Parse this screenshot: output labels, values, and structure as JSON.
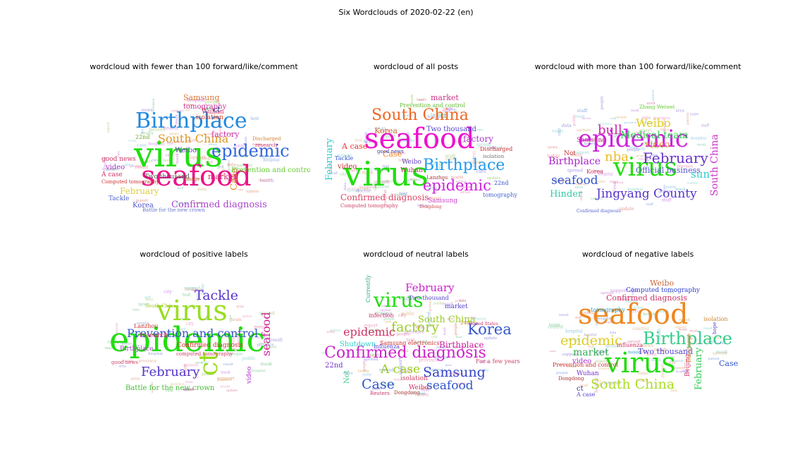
{
  "suptitle": "Six Wordclouds of 2020-02-22 (en)",
  "chart_data": [
    {
      "type": "wordcloud",
      "title": "wordcloud with fewer than 100 forward/like/comment",
      "words": [
        {
          "text": "virus",
          "color": "#22dd11"
        },
        {
          "text": "seafood",
          "color": "#ee1188"
        },
        {
          "text": "Birthplace",
          "color": "#2288dd"
        },
        {
          "text": "epidemic",
          "color": "#3366dd"
        },
        {
          "text": "South China",
          "color": "#dd9922"
        },
        {
          "text": "Confirmed diagnosis",
          "color": "#aa44cc"
        },
        {
          "text": "February",
          "color": "#ddcc44"
        },
        {
          "text": "Case",
          "color": "#dd8833"
        },
        {
          "text": "Samsung",
          "color": "#dd7733"
        },
        {
          "text": "market",
          "color": "#cc3377"
        },
        {
          "text": "factory",
          "color": "#cc33aa"
        },
        {
          "text": "Prevention and control",
          "color": "#66cc33"
        },
        {
          "text": "tomography",
          "color": "#cc3399"
        },
        {
          "text": "Korea",
          "color": "#5555cc"
        },
        {
          "text": "video",
          "color": "#aa33cc"
        },
        {
          "text": "Weibo",
          "color": "#7744cc"
        },
        {
          "text": "Wuhan",
          "color": "#cc3366"
        },
        {
          "text": "isolation",
          "color": "#cc4433"
        },
        {
          "text": "A case",
          "color": "#cc3366"
        },
        {
          "text": "good news",
          "color": "#cc3366"
        },
        {
          "text": "Two thousand",
          "color": "#555555"
        },
        {
          "text": "Tackle",
          "color": "#5566cc"
        },
        {
          "text": "Computed tomography",
          "color": "#cc3333"
        },
        {
          "text": "Discharged",
          "color": "#cc8833"
        },
        {
          "text": "research",
          "color": "#cc3366"
        },
        {
          "text": "image",
          "color": "#aa5522"
        },
        {
          "text": "22nd",
          "color": "#77aa33"
        },
        {
          "text": "ct",
          "color": "#333399"
        },
        {
          "text": "Battle for the new crown",
          "color": "#6677cc"
        }
      ]
    },
    {
      "type": "wordcloud",
      "title": "wordcloud of all posts",
      "words": [
        {
          "text": "virus",
          "color": "#22dd11"
        },
        {
          "text": "seafood",
          "color": "#ee11cc"
        },
        {
          "text": "South China",
          "color": "#ee6622"
        },
        {
          "text": "Birthplace",
          "color": "#2299ee"
        },
        {
          "text": "epidemic",
          "color": "#cc22dd"
        },
        {
          "text": "Confirmed diagnosis",
          "color": "#dd4466"
        },
        {
          "text": "February",
          "color": "#33cccc"
        },
        {
          "text": "factory",
          "color": "#aa33cc"
        },
        {
          "text": "A case",
          "color": "#ee3333"
        },
        {
          "text": "Korea",
          "color": "#cc6633"
        },
        {
          "text": "Case",
          "color": "#ee8833"
        },
        {
          "text": "market",
          "color": "#cc3388"
        },
        {
          "text": "video",
          "color": "#cc3333"
        },
        {
          "text": "Weibo",
          "color": "#6644cc"
        },
        {
          "text": "Wuhan",
          "color": "#cc3366"
        },
        {
          "text": "Samsung",
          "color": "#cc44cc"
        },
        {
          "text": "Two thousand",
          "color": "#5544cc"
        },
        {
          "text": "Prevention and control",
          "color": "#66bb33"
        },
        {
          "text": "Tackle",
          "color": "#3355cc"
        },
        {
          "text": "Discharged",
          "color": "#cc3333"
        },
        {
          "text": "tomography",
          "color": "#4466cc"
        },
        {
          "text": "22nd",
          "color": "#3355cc"
        },
        {
          "text": "Computed tomography",
          "color": "#cc4466"
        },
        {
          "text": "ct",
          "color": "#33aa88"
        },
        {
          "text": "good news",
          "color": "#333399"
        },
        {
          "text": "isolation",
          "color": "#777777"
        },
        {
          "text": "Lanzhou",
          "color": "#aa3333"
        },
        {
          "text": "Dongdong",
          "color": "#cc4444"
        }
      ]
    },
    {
      "type": "wordcloud",
      "title": "wordcloud with more than 100 forward/like/comment",
      "words": [
        {
          "text": "epidemic",
          "color": "#cc22dd"
        },
        {
          "text": "virus",
          "color": "#22dd11"
        },
        {
          "text": "Jingyang County",
          "color": "#5533cc"
        },
        {
          "text": "February",
          "color": "#6633cc"
        },
        {
          "text": "Weibo",
          "color": "#ddcc22"
        },
        {
          "text": "Medical team",
          "color": "#33cc55"
        },
        {
          "text": "seafood",
          "color": "#3355cc"
        },
        {
          "text": "Birthplace",
          "color": "#aa22cc"
        },
        {
          "text": "nba",
          "color": "#eebb22"
        },
        {
          "text": "bull",
          "color": "#cc22aa"
        },
        {
          "text": "video",
          "color": "#ee8833"
        },
        {
          "text": "Hinder",
          "color": "#33ccaa"
        },
        {
          "text": "sun",
          "color": "#33cccc"
        },
        {
          "text": "South China",
          "color": "#cc33cc"
        },
        {
          "text": "Official business",
          "color": "#5555cc"
        },
        {
          "text": "Samsung",
          "color": "#cc3399"
        },
        {
          "text": "Not",
          "color": "#cc3333"
        },
        {
          "text": "Korea",
          "color": "#cc3366"
        },
        {
          "text": "Zhang Weiwei",
          "color": "#66cc33"
        },
        {
          "text": "Confirmed diagnosis",
          "color": "#5566cc"
        }
      ]
    },
    {
      "type": "wordcloud",
      "title": "wordcloud of positive labels",
      "words": [
        {
          "text": "epidemic",
          "color": "#22dd11"
        },
        {
          "text": "virus",
          "color": "#99dd22"
        },
        {
          "text": "ct",
          "color": "#99dd22"
        },
        {
          "text": "Prevention and control",
          "color": "#3355cc"
        },
        {
          "text": "February",
          "color": "#5533cc"
        },
        {
          "text": "Tackle",
          "color": "#5533cc"
        },
        {
          "text": "seafood",
          "color": "#cc2299"
        },
        {
          "text": "Battle for the new crown",
          "color": "#44bb33"
        },
        {
          "text": "Confirmed diagnosis",
          "color": "#cc3333"
        },
        {
          "text": "research",
          "color": "#cc3366"
        },
        {
          "text": "Lanzhou",
          "color": "#cc3333"
        },
        {
          "text": "Birthplace",
          "color": "#aa44cc"
        },
        {
          "text": "video",
          "color": "#aa33cc"
        },
        {
          "text": "South China",
          "color": "#aacc33"
        },
        {
          "text": "good news",
          "color": "#cc4466"
        },
        {
          "text": "computed tomography",
          "color": "#cc4466"
        }
      ]
    },
    {
      "type": "wordcloud",
      "title": "wordcloud of neutral labels",
      "words": [
        {
          "text": "Confirmed diagnosis",
          "color": "#cc22cc"
        },
        {
          "text": "virus",
          "color": "#22dd11"
        },
        {
          "text": "factory",
          "color": "#99cc22"
        },
        {
          "text": "Korea",
          "color": "#3355cc"
        },
        {
          "text": "Samsung",
          "color": "#3344cc"
        },
        {
          "text": "epidemic",
          "color": "#cc3366"
        },
        {
          "text": "February",
          "color": "#cc22cc"
        },
        {
          "text": "South China",
          "color": "#99cc22"
        },
        {
          "text": "A case",
          "color": "#99cc22"
        },
        {
          "text": "Case",
          "color": "#3355cc"
        },
        {
          "text": "seafood",
          "color": "#3355cc"
        },
        {
          "text": "Birthplace",
          "color": "#cc2299"
        },
        {
          "text": "Shutdown",
          "color": "#33cccc"
        },
        {
          "text": "22nd",
          "color": "#7733cc"
        },
        {
          "text": "Samsung electronics",
          "color": "#cc3333"
        },
        {
          "text": "market",
          "color": "#5544cc"
        },
        {
          "text": "Two thousand",
          "color": "#5544cc"
        },
        {
          "text": "isolation",
          "color": "#cc4466"
        },
        {
          "text": "Weibo",
          "color": "#cc3366"
        },
        {
          "text": "influenza",
          "color": "#5544cc"
        },
        {
          "text": "infection",
          "color": "#cc3366"
        },
        {
          "text": "For a few years",
          "color": "#cc4466"
        },
        {
          "text": "Not",
          "color": "#33cc88"
        },
        {
          "text": "Currently",
          "color": "#33aa88"
        },
        {
          "text": "Reuters",
          "color": "#cc3366"
        },
        {
          "text": "Dongdong",
          "color": "#aa3333"
        },
        {
          "text": "24th",
          "color": "#cc8833"
        },
        {
          "text": "United States",
          "color": "#cc3366"
        }
      ]
    },
    {
      "type": "wordcloud",
      "title": "wordcloud of negative labels",
      "words": [
        {
          "text": "seafood",
          "color": "#ee8822"
        },
        {
          "text": "virus",
          "color": "#22dd11"
        },
        {
          "text": "Birthplace",
          "color": "#33cc88"
        },
        {
          "text": "epidemic",
          "color": "#ddcc22"
        },
        {
          "text": "South China",
          "color": "#aadd22"
        },
        {
          "text": "market",
          "color": "#33aa55"
        },
        {
          "text": "February",
          "color": "#33cc55"
        },
        {
          "text": "Confirmed diagnosis",
          "color": "#cc3366"
        },
        {
          "text": "Two thousand",
          "color": "#5544cc"
        },
        {
          "text": "Weibo",
          "color": "#cc6633"
        },
        {
          "text": "Computed tomography",
          "color": "#3344cc"
        },
        {
          "text": "Case",
          "color": "#3355cc"
        },
        {
          "text": "video",
          "color": "#aa33cc"
        },
        {
          "text": "Wuhan",
          "color": "#7733cc"
        },
        {
          "text": "Prevention and control",
          "color": "#cc3333"
        },
        {
          "text": "influenza",
          "color": "#cc3366"
        },
        {
          "text": "A case",
          "color": "#5544cc"
        },
        {
          "text": "ct",
          "color": "#333399"
        },
        {
          "text": "isolation",
          "color": "#cc8833"
        },
        {
          "text": "tomography",
          "color": "#3399cc"
        },
        {
          "text": "Dongdong",
          "color": "#aa3333"
        },
        {
          "text": "Beijing",
          "color": "#cc3366"
        },
        {
          "text": "Discharge",
          "color": "#cc8833"
        },
        {
          "text": "hope",
          "color": "#5544cc"
        }
      ]
    }
  ]
}
